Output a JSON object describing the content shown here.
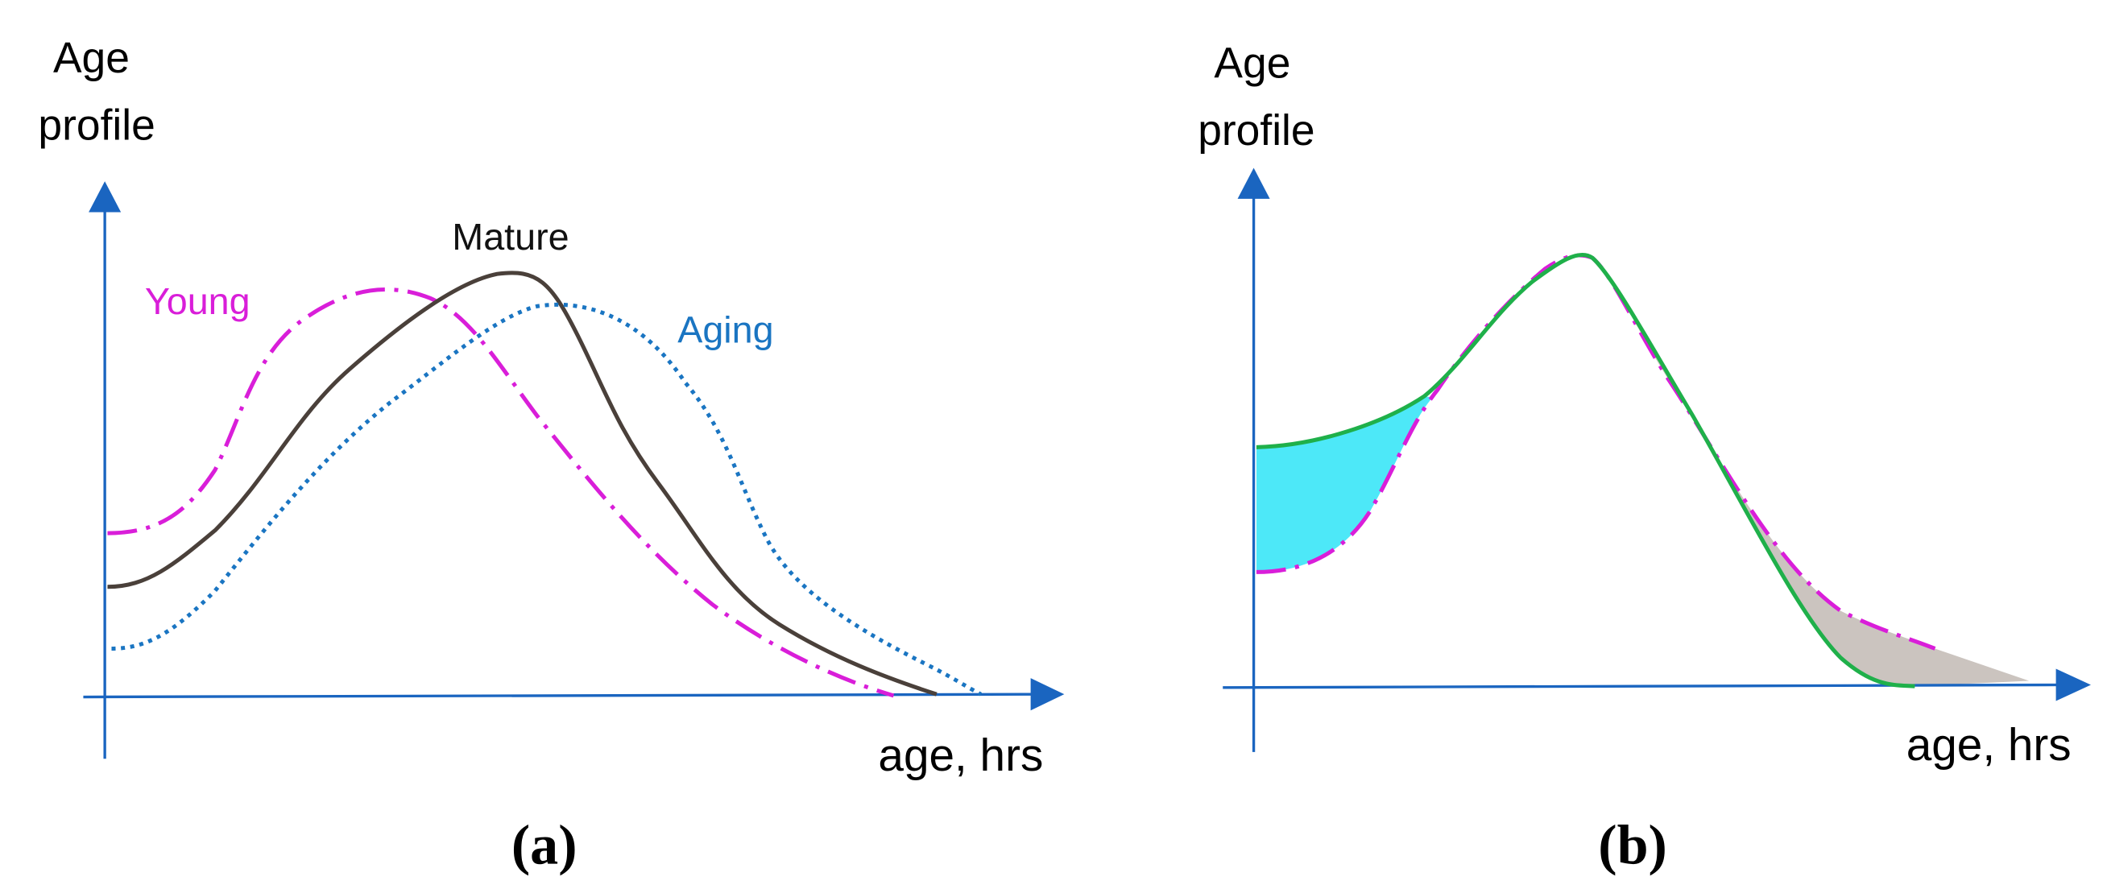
{
  "panels": [
    {
      "y_label": [
        "Age",
        "profile"
      ],
      "x_label": "age, hrs",
      "curve_labels": [
        "Young",
        "Mature",
        "Aging"
      ],
      "caption": "(a)"
    },
    {
      "y_label": [
        "Age",
        "profile"
      ],
      "x_label": "age, hrs",
      "caption": "(b)"
    }
  ]
}
